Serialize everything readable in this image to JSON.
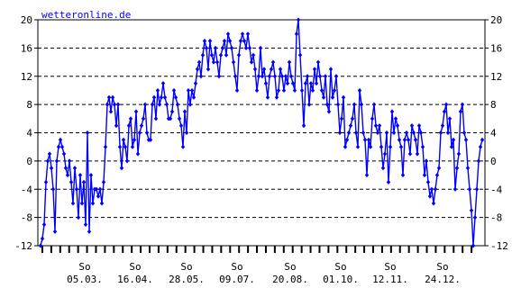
{
  "chart_data": {
    "type": "line",
    "watermark": "wetteronline.de",
    "ylim": [
      -12,
      20
    ],
    "yticks": [
      -12,
      -8,
      -4,
      0,
      4,
      8,
      12,
      16,
      20
    ],
    "ytick_labels": [
      "-12",
      "-8",
      "-4",
      "0",
      "4",
      "8",
      "12",
      "16",
      "20"
    ],
    "grid": true,
    "xticks": [
      {
        "day_label": "So",
        "date_label": "05.03."
      },
      {
        "day_label": "So",
        "date_label": "16.04."
      },
      {
        "day_label": "So",
        "date_label": "28.05."
      },
      {
        "day_label": "So",
        "date_label": "09.07."
      },
      {
        "day_label": "So",
        "date_label": "20.08."
      },
      {
        "day_label": "So",
        "date_label": "01.10."
      },
      {
        "day_label": "So",
        "date_label": "12.11."
      },
      {
        "day_label": "So",
        "date_label": "24.12."
      }
    ],
    "series": [
      {
        "color": "#0000ff",
        "values": [
          -12,
          -11,
          -9,
          -3,
          0,
          1,
          -1,
          -4,
          -10,
          0,
          2,
          3,
          2,
          1,
          -1,
          -2,
          0,
          -3,
          -6,
          -1,
          -4,
          -8,
          -2,
          -6,
          -3,
          -9,
          4,
          -10,
          -2,
          -6,
          -4,
          -4,
          -5,
          -4,
          -6,
          -3,
          2,
          8,
          9,
          7,
          9,
          8,
          5,
          8,
          2,
          -1,
          3,
          2,
          0,
          5,
          6,
          2,
          3,
          7,
          1,
          4,
          5,
          6,
          8,
          4,
          3,
          3,
          8,
          9,
          6,
          10,
          8,
          9,
          11,
          9,
          8,
          6,
          6,
          7,
          10,
          9,
          8,
          6,
          5,
          2,
          7,
          4,
          10,
          8,
          10,
          9,
          11,
          13,
          14,
          12,
          15,
          17,
          16,
          13,
          17,
          15,
          14,
          16,
          14,
          12,
          15,
          16,
          17,
          15,
          18,
          17,
          16,
          14,
          12,
          10,
          15,
          17,
          18,
          17,
          16,
          18,
          16,
          14,
          15,
          13,
          10,
          12,
          16,
          12,
          13,
          11,
          9,
          12,
          13,
          14,
          12,
          9,
          10,
          13,
          12,
          10,
          12,
          11,
          14,
          12,
          11,
          10,
          18,
          20,
          15,
          10,
          5,
          11,
          12,
          8,
          11,
          10,
          13,
          11,
          14,
          12,
          10,
          9,
          12,
          8,
          7,
          13,
          9,
          10,
          12,
          8,
          4,
          6,
          9,
          2,
          3,
          4,
          5,
          6,
          8,
          4,
          2,
          10,
          8,
          4,
          3,
          -2,
          3,
          2,
          6,
          8,
          5,
          4,
          5,
          2,
          -1,
          1,
          4,
          -3,
          2,
          7,
          4,
          6,
          5,
          3,
          2,
          -2,
          3,
          4,
          3,
          1,
          5,
          4,
          3,
          1,
          5,
          4,
          2,
          -2,
          0,
          -3,
          -5,
          -4,
          -6,
          -4,
          -2,
          -1,
          4,
          5,
          7,
          8,
          4,
          6,
          2,
          3,
          -4,
          -1,
          1,
          7,
          8,
          4,
          3,
          -1,
          -4,
          -7,
          -12,
          -8,
          -4,
          0,
          2,
          3
        ]
      }
    ]
  }
}
